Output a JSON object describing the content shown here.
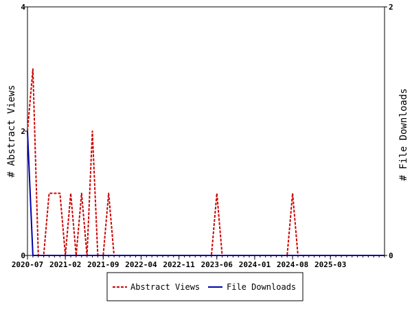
{
  "chart_data": {
    "type": "line",
    "y_left_label": "# Abstract Views",
    "y_right_label": "# File Downloads",
    "y_left_range": [
      0,
      4
    ],
    "y_right_range": [
      0,
      2
    ],
    "y_left_ticks": [
      "0",
      "2",
      "4"
    ],
    "y_right_ticks": [
      "0",
      "2"
    ],
    "x_range": [
      "2020-07",
      "2026-01"
    ],
    "x_tick_labels": [
      "2020-07",
      "2021-02",
      "2021-09",
      "2022-04",
      "2022-11",
      "2023-06",
      "2024-01",
      "2024-08",
      "2025-03"
    ],
    "legend_position": "bottom-center",
    "series": [
      {
        "name": "Abstract Views",
        "axis": "left",
        "color": "#cc0000",
        "style": "dashed",
        "points": [
          [
            "2020-07",
            2
          ],
          [
            "2020-08",
            3
          ],
          [
            "2020-09",
            0
          ],
          [
            "2020-10",
            0
          ],
          [
            "2020-11",
            1
          ],
          [
            "2020-12",
            1
          ],
          [
            "2021-01",
            1
          ],
          [
            "2021-02",
            0
          ],
          [
            "2021-03",
            1
          ],
          [
            "2021-04",
            0
          ],
          [
            "2021-05",
            1
          ],
          [
            "2021-06",
            0
          ],
          [
            "2021-07",
            2
          ],
          [
            "2021-08",
            0
          ],
          [
            "2021-09",
            0
          ],
          [
            "2021-10",
            1
          ],
          [
            "2021-11",
            0
          ],
          [
            "2023-05",
            0
          ],
          [
            "2023-06",
            1
          ],
          [
            "2023-07",
            0
          ],
          [
            "2024-07",
            0
          ],
          [
            "2024-08",
            1
          ],
          [
            "2024-09",
            0
          ],
          [
            "2026-01",
            0
          ]
        ]
      },
      {
        "name": "File Downloads",
        "axis": "right",
        "color": "#0000aa",
        "style": "solid",
        "points": [
          [
            "2020-07",
            1
          ],
          [
            "2020-08",
            0
          ],
          [
            "2026-01",
            0
          ]
        ]
      }
    ]
  }
}
